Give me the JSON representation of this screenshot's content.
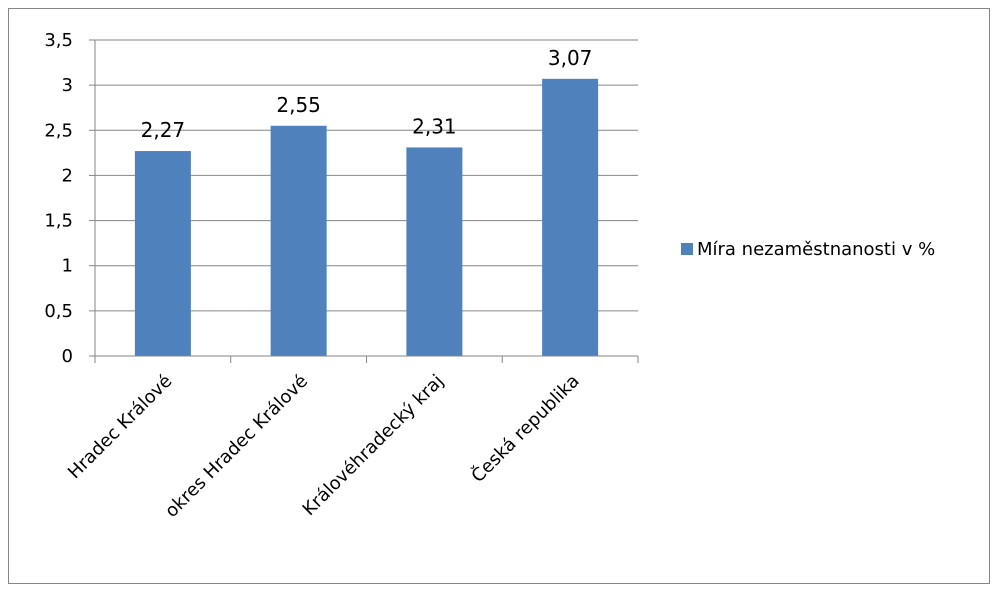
{
  "chart_data": {
    "type": "bar",
    "categories": [
      "Hradec Králové",
      "okres Hradec Králové",
      "Královéhradecký kraj",
      "Česká republika"
    ],
    "series": [
      {
        "name": "Míra nezaměstnanosti v %",
        "values": [
          2.27,
          2.55,
          2.31,
          3.07
        ],
        "labels": [
          "2,27",
          "2,55",
          "2,31",
          "3,07"
        ],
        "color": "#4F81BD"
      }
    ],
    "yticks": [
      "0",
      "0,5",
      "1",
      "1,5",
      "2",
      "2,5",
      "3",
      "3,5"
    ],
    "ylim": [
      0,
      3.5
    ],
    "grid": true,
    "legend": "right"
  }
}
